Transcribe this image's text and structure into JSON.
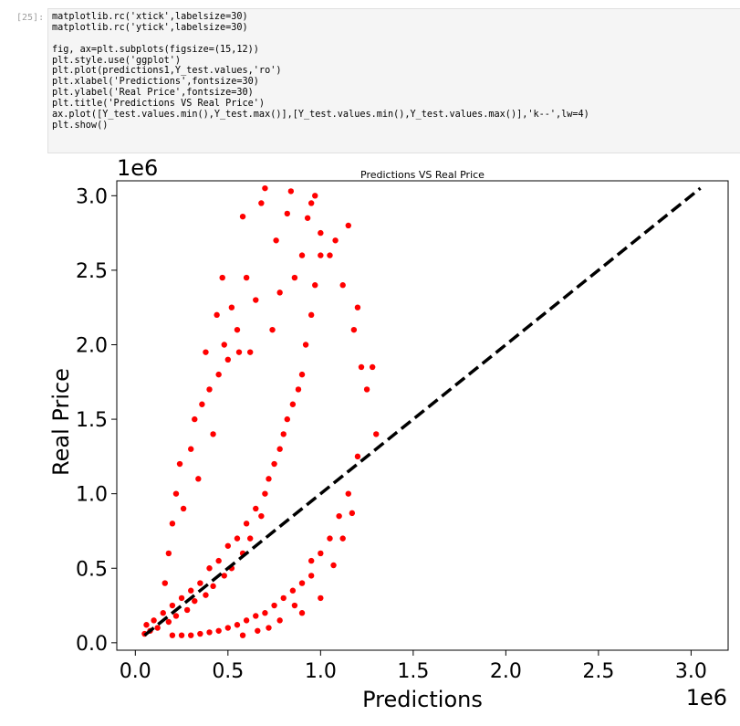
{
  "cell": {
    "prompt": "[25]:",
    "code_lines": [
      "matplotlib.rc('xtick',labelsize=30)",
      "matplotlib.rc('ytick',labelsize=30)",
      "",
      "fig, ax=plt.subplots(figsize=(15,12))",
      "plt.style.use('ggplot')",
      "plt.plot(predictions1,Y_test.values,'ro')",
      "plt.xlabel('Predictions',fontsize=30)",
      "plt.ylabel('Real Price',fontsize=30)",
      "plt.title('Predictions VS Real Price')",
      "ax.plot([Y_test.values.min(),Y_test.max()],[Y_test.values.min(),Y_test.values.max()],'k--',lw=4)",
      "plt.show()"
    ]
  },
  "chart_data": {
    "type": "scatter",
    "title": "Predictions VS Real Price",
    "xlabel": "Predictions",
    "ylabel": "Real Price",
    "x_multiplier": "1e6",
    "y_multiplier": "1e6",
    "xlim": [
      -0.1,
      3.2
    ],
    "ylim": [
      -0.05,
      3.1
    ],
    "x_ticks": [
      0.0,
      0.5,
      1.0,
      1.5,
      2.0,
      2.5,
      3.0
    ],
    "y_ticks": [
      0.0,
      0.5,
      1.0,
      1.5,
      2.0,
      2.5,
      3.0
    ],
    "x_tick_labels": [
      "0.0",
      "0.5",
      "1.0",
      "1.5",
      "2.0",
      "2.5",
      "3.0"
    ],
    "y_tick_labels": [
      "0.0",
      "0.5",
      "1.0",
      "1.5",
      "2.0",
      "2.5",
      "3.0"
    ],
    "grid": false,
    "colors": {
      "points": "#ff0000",
      "reference_line": "#000000"
    },
    "reference_line": {
      "x": [
        0.05,
        3.05
      ],
      "y": [
        0.05,
        3.05
      ],
      "style": "dashed"
    },
    "series": [
      {
        "marker": "o",
        "color": "#ff0000",
        "points": [
          [
            0.05,
            0.06
          ],
          [
            0.06,
            0.12
          ],
          [
            0.08,
            0.08
          ],
          [
            0.1,
            0.15
          ],
          [
            0.12,
            0.1
          ],
          [
            0.15,
            0.2
          ],
          [
            0.18,
            0.14
          ],
          [
            0.2,
            0.25
          ],
          [
            0.22,
            0.18
          ],
          [
            0.25,
            0.3
          ],
          [
            0.28,
            0.22
          ],
          [
            0.3,
            0.35
          ],
          [
            0.32,
            0.28
          ],
          [
            0.35,
            0.4
          ],
          [
            0.38,
            0.32
          ],
          [
            0.4,
            0.5
          ],
          [
            0.42,
            0.38
          ],
          [
            0.45,
            0.55
          ],
          [
            0.48,
            0.45
          ],
          [
            0.5,
            0.65
          ],
          [
            0.52,
            0.5
          ],
          [
            0.55,
            0.7
          ],
          [
            0.58,
            0.6
          ],
          [
            0.6,
            0.8
          ],
          [
            0.62,
            0.7
          ],
          [
            0.65,
            0.9
          ],
          [
            0.68,
            0.85
          ],
          [
            0.7,
            1.0
          ],
          [
            0.72,
            1.1
          ],
          [
            0.75,
            1.2
          ],
          [
            0.78,
            1.3
          ],
          [
            0.8,
            1.4
          ],
          [
            0.82,
            1.5
          ],
          [
            0.85,
            1.6
          ],
          [
            0.88,
            1.7
          ],
          [
            0.9,
            1.8
          ],
          [
            0.92,
            2.0
          ],
          [
            0.95,
            2.2
          ],
          [
            0.97,
            2.4
          ],
          [
            1.0,
            2.6
          ],
          [
            0.7,
            3.05
          ],
          [
            0.68,
            2.95
          ],
          [
            0.84,
            3.03
          ],
          [
            0.95,
            2.95
          ],
          [
            0.97,
            3.0
          ],
          [
            0.82,
            2.88
          ],
          [
            0.58,
            2.86
          ],
          [
            1.0,
            2.75
          ],
          [
            1.05,
            2.6
          ],
          [
            1.08,
            2.7
          ],
          [
            1.12,
            2.4
          ],
          [
            1.15,
            2.8
          ],
          [
            1.2,
            2.25
          ],
          [
            1.18,
            2.1
          ],
          [
            1.22,
            1.85
          ],
          [
            1.25,
            1.7
          ],
          [
            1.28,
            1.85
          ],
          [
            1.3,
            1.4
          ],
          [
            1.2,
            1.25
          ],
          [
            1.15,
            1.0
          ],
          [
            1.1,
            0.85
          ],
          [
            1.05,
            0.7
          ],
          [
            1.0,
            0.6
          ],
          [
            1.07,
            0.52
          ],
          [
            0.95,
            0.45
          ],
          [
            0.9,
            0.4
          ],
          [
            0.85,
            0.35
          ],
          [
            0.8,
            0.3
          ],
          [
            0.75,
            0.25
          ],
          [
            0.7,
            0.2
          ],
          [
            0.65,
            0.18
          ],
          [
            0.6,
            0.15
          ],
          [
            0.55,
            0.12
          ],
          [
            0.5,
            0.1
          ],
          [
            0.45,
            0.08
          ],
          [
            0.4,
            0.07
          ],
          [
            0.35,
            0.06
          ],
          [
            0.3,
            0.05
          ],
          [
            0.25,
            0.05
          ],
          [
            0.2,
            0.05
          ],
          [
            0.16,
            0.4
          ],
          [
            0.18,
            0.6
          ],
          [
            0.2,
            0.8
          ],
          [
            0.22,
            1.0
          ],
          [
            0.24,
            1.2
          ],
          [
            0.26,
            0.9
          ],
          [
            0.3,
            1.3
          ],
          [
            0.32,
            1.5
          ],
          [
            0.34,
            1.1
          ],
          [
            0.36,
            1.6
          ],
          [
            0.4,
            1.7
          ],
          [
            0.45,
            1.8
          ],
          [
            0.48,
            2.0
          ],
          [
            0.5,
            1.9
          ],
          [
            0.55,
            2.1
          ],
          [
            0.42,
            1.4
          ],
          [
            0.44,
            2.2
          ],
          [
            0.6,
            2.45
          ],
          [
            0.47,
            2.45
          ],
          [
            0.65,
            2.3
          ],
          [
            0.9,
            0.2
          ],
          [
            1.0,
            0.3
          ],
          [
            0.86,
            0.25
          ],
          [
            0.78,
            0.15
          ],
          [
            0.72,
            0.1
          ],
          [
            0.95,
            0.55
          ],
          [
            1.12,
            0.7
          ],
          [
            1.17,
            0.87
          ],
          [
            0.58,
            0.05
          ],
          [
            0.66,
            0.08
          ],
          [
            0.38,
            1.95
          ],
          [
            0.52,
            2.25
          ],
          [
            0.56,
            1.95
          ],
          [
            0.62,
            1.95
          ],
          [
            0.74,
            2.1
          ],
          [
            0.78,
            2.35
          ],
          [
            0.86,
            2.45
          ],
          [
            0.9,
            2.6
          ],
          [
            0.93,
            2.85
          ],
          [
            0.76,
            2.7
          ]
        ]
      }
    ]
  }
}
